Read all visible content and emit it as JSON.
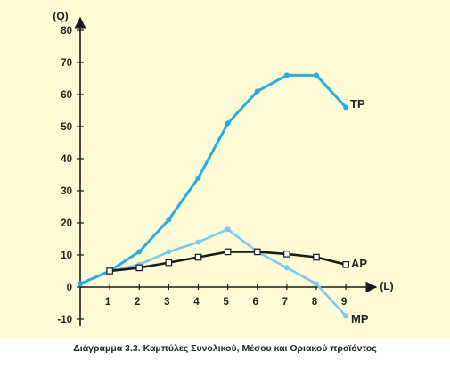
{
  "caption": "Διάγραμμα 3.3. Καμπύλες Συνολικού, Μέσου και Οριακού προϊόντος",
  "colors": {
    "background": "#fdfbd6",
    "tp": "#29abe2",
    "mp": "#7ec8ee",
    "ap": "#1a1a1a",
    "axis": "#1a1a1a"
  },
  "chart_data": {
    "type": "line",
    "xlabel": "(L)",
    "ylabel": "(Q)",
    "xlim": [
      0,
      9
    ],
    "ylim": [
      -10,
      80
    ],
    "x_ticks": [
      "1",
      "2",
      "3",
      "4",
      "5",
      "6",
      "7",
      "8",
      "9"
    ],
    "y_ticks": [
      "80",
      "70",
      "60",
      "50",
      "40",
      "30",
      "20",
      "10",
      "0",
      "-10"
    ],
    "grid": false,
    "series": [
      {
        "name": "TP",
        "marker": "dot",
        "x": [
          0,
          1,
          2,
          3,
          4,
          5,
          6,
          7,
          8,
          9
        ],
        "y": [
          1,
          5,
          11,
          21,
          34,
          51,
          61,
          66,
          66,
          56
        ]
      },
      {
        "name": "MP",
        "marker": "dot",
        "x": [
          0,
          1,
          2,
          3,
          4,
          5,
          6,
          7,
          8,
          9
        ],
        "y": [
          1,
          5,
          7,
          11,
          14,
          18,
          11,
          6,
          1,
          -9
        ]
      },
      {
        "name": "AP",
        "marker": "square",
        "x": [
          1,
          2,
          3,
          4,
          5,
          6,
          7,
          8,
          9
        ],
        "y": [
          5,
          6,
          7.6,
          9.3,
          11,
          11,
          10.3,
          9.3,
          7
        ]
      }
    ]
  }
}
